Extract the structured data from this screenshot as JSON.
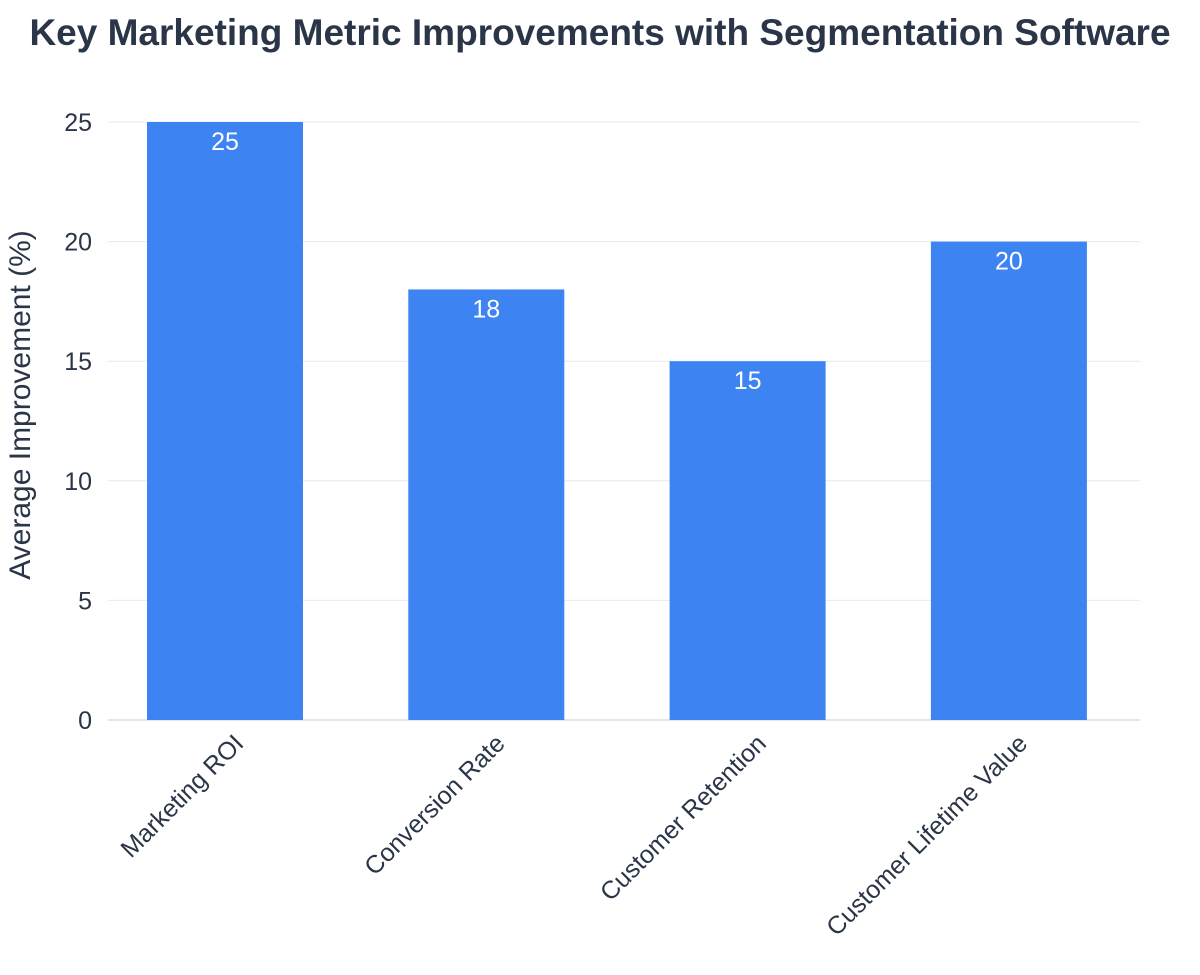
{
  "chart_data": {
    "type": "bar",
    "title": "Key Marketing Metric Improvements with Segmentation Software",
    "xlabel": "",
    "ylabel": "Average Improvement (%)",
    "categories": [
      "Marketing ROI",
      "Conversion Rate",
      "Customer Retention",
      "Customer Lifetime Value"
    ],
    "values": [
      25,
      18,
      15,
      20
    ],
    "value_labels": [
      "25",
      "18",
      "15",
      "20"
    ],
    "ylim": [
      0,
      25
    ],
    "yticks": [
      0,
      5,
      10,
      15,
      20,
      25
    ],
    "ytick_labels": [
      "0",
      "5",
      "10",
      "15",
      "20",
      "25"
    ],
    "grid": true,
    "legend": "none",
    "bar_color": "#3d83f2",
    "text_color": "#2a3547"
  }
}
